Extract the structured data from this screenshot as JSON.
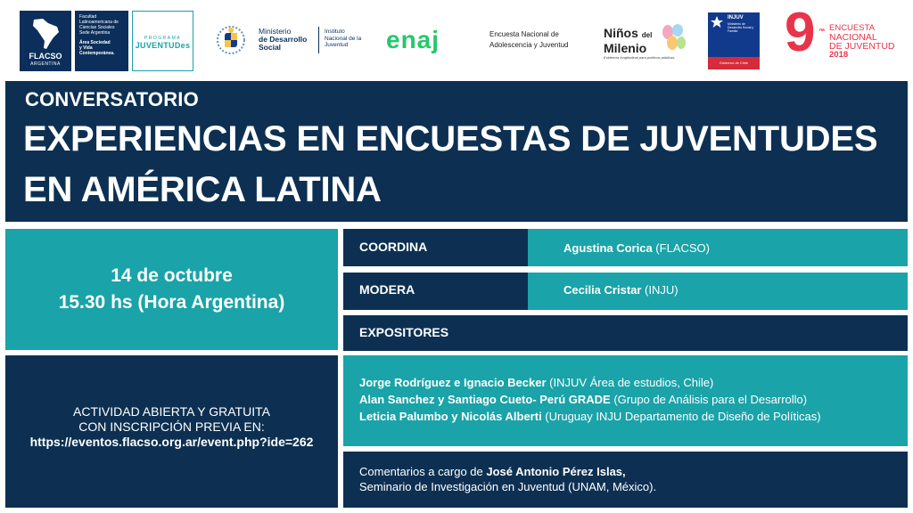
{
  "logos": {
    "flacso": {
      "name": "FLACSO",
      "sub": "ARGENTINA",
      "side_l1": "Facultad",
      "side_l2": "Latinoamericana de",
      "side_l3": "Ciencias Sociales",
      "side_l4": "Sede Argentina",
      "side_b1": "Área Sociedad",
      "side_b2": "y Vida",
      "side_b3": "Contemporánea."
    },
    "programa_juventud": {
      "top": "PROGRAMA",
      "main": "JUVENTUDes"
    },
    "mides": {
      "l1": "Ministerio",
      "l2": "de Desarrollo",
      "l3": "Social"
    },
    "inju": {
      "l1": "Instituto",
      "l2": "Nacional de la",
      "l3": "Juventud"
    },
    "enaj": {
      "mark": "enaj",
      "l1": "Encuesta Nacional de",
      "l2": "Adolescencia y Juventud"
    },
    "ninos": {
      "l1": "Niños",
      "del": "del",
      "l2": "Milenio",
      "tag": "Evidencia longitudinal para políticas públicas"
    },
    "gob_chile": {
      "injuv": "INJUV",
      "ministry": "Ministerio de Desarrollo Social y Familia",
      "foot": "Gobierno de Chile"
    },
    "encuesta9": {
      "num": "9",
      "sup": "na",
      "l1": "ENCUESTA",
      "l2": "NACIONAL",
      "l3": "DE JUVENTUD",
      "year": "2018"
    }
  },
  "header": {
    "kicker": "CONVERSATORIO",
    "title_line1": "EXPERIENCIAS EN ENCUESTAS DE JUVENTUDES",
    "title_line2": "EN AMÉRICA LATINA"
  },
  "event": {
    "date": "14 de octubre",
    "time": "15.30 hs (Hora Argentina)"
  },
  "roles": {
    "coordina": {
      "label": "COORDINA",
      "name": "Agustina Corica",
      "org": " (FLACSO)"
    },
    "modera": {
      "label": "MODERA",
      "name": "Cecilia Cristar",
      "org": " (INJU)"
    },
    "expositores": {
      "label": "EXPOSITORES"
    }
  },
  "speakers": [
    {
      "names": "Jorge Rodríguez e Ignacio Becker",
      "org": " (INJUV Área de estudios, Chile)"
    },
    {
      "names": "Alan Sanchez y Santiago Cueto- Perú GRADE",
      "org": " (Grupo de Análisis para el Desarrollo)"
    },
    {
      "names": "Leticia Palumbo y Nicolás Alberti",
      "org": " (Uruguay INJU Departamento de Diseño de Políticas)"
    }
  ],
  "comments": {
    "prefix": "Comentarios a cargo de ",
    "name": "José Antonio Pérez Islas,",
    "line2": "Seminario de Investigación en Juventud (UNAM, México)."
  },
  "registration": {
    "l1": "ACTIVIDAD ABIERTA Y GRATUITA",
    "l2": "CON INSCRIPCIÓN PREVIA EN:",
    "url": "https://eventos.flacso.org.ar/event.php?ide=262"
  },
  "colors": {
    "navy": "#0d3052",
    "teal": "#1aa3a8",
    "enaj_green": "#27c76b",
    "encuesta_red": "#e8344a"
  }
}
